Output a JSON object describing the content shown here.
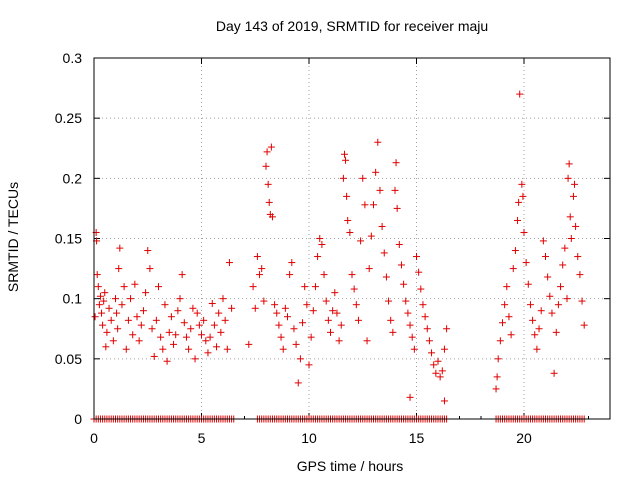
{
  "chart_data": {
    "type": "scatter",
    "title": "Day 143 of 2019, SRMTID for receiver maju",
    "xlabel": "GPS time / hours",
    "ylabel": "SRMTID / TECUs",
    "xlim": [
      0,
      24
    ],
    "ylim": [
      0,
      0.3
    ],
    "x_ticks": [
      0,
      5,
      10,
      15,
      20
    ],
    "x_tick_labels": [
      "0",
      "5",
      "10",
      "15",
      "20"
    ],
    "y_ticks": [
      0,
      0.05,
      0.1,
      0.15,
      0.2,
      0.25,
      0.3
    ],
    "y_tick_labels": [
      "0",
      "0.05",
      "0.1",
      "0.15",
      "0.2",
      "0.25",
      "0.3"
    ],
    "grid": true,
    "marker": "+",
    "color": "#e00000",
    "series": [
      {
        "name": "SRMTID",
        "points": [
          [
            0.05,
            0.085
          ],
          [
            0.1,
            0.155
          ],
          [
            0.12,
            0.148
          ],
          [
            0.15,
            0.12
          ],
          [
            0.2,
            0.11
          ],
          [
            0.25,
            0.095
          ],
          [
            0.3,
            0.102
          ],
          [
            0.35,
            0.088
          ],
          [
            0.4,
            0.078
          ],
          [
            0.45,
            0.098
          ],
          [
            0.5,
            0.105
          ],
          [
            0.55,
            0.06
          ],
          [
            0.6,
            0.072
          ],
          [
            0.7,
            0.092
          ],
          [
            0.8,
            0.082
          ],
          [
            0.9,
            0.065
          ],
          [
            1.0,
            0.1
          ],
          [
            1.05,
            0.088
          ],
          [
            1.1,
            0.075
          ],
          [
            1.15,
            0.125
          ],
          [
            1.2,
            0.142
          ],
          [
            1.3,
            0.095
          ],
          [
            1.4,
            0.11
          ],
          [
            1.5,
            0.058
          ],
          [
            1.6,
            0.082
          ],
          [
            1.7,
            0.1
          ],
          [
            1.8,
            0.07
          ],
          [
            1.9,
            0.112
          ],
          [
            2.0,
            0.085
          ],
          [
            2.1,
            0.065
          ],
          [
            2.2,
            0.078
          ],
          [
            2.3,
            0.09
          ],
          [
            2.4,
            0.105
          ],
          [
            2.5,
            0.14
          ],
          [
            2.6,
            0.125
          ],
          [
            2.7,
            0.075
          ],
          [
            2.8,
            0.052
          ],
          [
            2.9,
            0.082
          ],
          [
            3.0,
            0.11
          ],
          [
            3.1,
            0.068
          ],
          [
            3.2,
            0.058
          ],
          [
            3.3,
            0.095
          ],
          [
            3.4,
            0.048
          ],
          [
            3.5,
            0.072
          ],
          [
            3.6,
            0.085
          ],
          [
            3.7,
            0.062
          ],
          [
            3.8,
            0.07
          ],
          [
            3.9,
            0.09
          ],
          [
            4.0,
            0.1
          ],
          [
            4.1,
            0.12
          ],
          [
            4.2,
            0.08
          ],
          [
            4.3,
            0.068
          ],
          [
            4.4,
            0.058
          ],
          [
            4.5,
            0.075
          ],
          [
            4.6,
            0.092
          ],
          [
            4.7,
            0.05
          ],
          [
            4.8,
            0.088
          ],
          [
            4.9,
            0.078
          ],
          [
            5.0,
            0.07
          ],
          [
            5.1,
            0.082
          ],
          [
            5.2,
            0.065
          ],
          [
            5.3,
            0.055
          ],
          [
            5.4,
            0.068
          ],
          [
            5.5,
            0.096
          ],
          [
            5.6,
            0.078
          ],
          [
            5.7,
            0.06
          ],
          [
            5.8,
            0.088
          ],
          [
            5.9,
            0.072
          ],
          [
            6.0,
            0.1
          ],
          [
            6.1,
            0.082
          ],
          [
            6.2,
            0.058
          ],
          [
            6.3,
            0.13
          ],
          [
            6.4,
            0.092
          ],
          [
            7.2,
            0.062
          ],
          [
            7.4,
            0.11
          ],
          [
            7.5,
            0.092
          ],
          [
            7.6,
            0.135
          ],
          [
            7.7,
            0.12
          ],
          [
            7.8,
            0.125
          ],
          [
            7.9,
            0.098
          ],
          [
            8.0,
            0.21
          ],
          [
            8.05,
            0.222
          ],
          [
            8.1,
            0.195
          ],
          [
            8.15,
            0.18
          ],
          [
            8.2,
            0.17
          ],
          [
            8.25,
            0.226
          ],
          [
            8.3,
            0.168
          ],
          [
            8.4,
            0.095
          ],
          [
            8.5,
            0.088
          ],
          [
            8.6,
            0.078
          ],
          [
            8.7,
            0.068
          ],
          [
            8.8,
            0.058
          ],
          [
            8.9,
            0.092
          ],
          [
            9.0,
            0.085
          ],
          [
            9.1,
            0.12
          ],
          [
            9.2,
            0.13
          ],
          [
            9.3,
            0.075
          ],
          [
            9.4,
            0.062
          ],
          [
            9.5,
            0.03
          ],
          [
            9.6,
            0.05
          ],
          [
            9.7,
            0.08
          ],
          [
            9.8,
            0.11
          ],
          [
            9.9,
            0.095
          ],
          [
            10.0,
            0.045
          ],
          [
            10.1,
            0.068
          ],
          [
            10.2,
            0.09
          ],
          [
            10.3,
            0.11
          ],
          [
            10.4,
            0.135
          ],
          [
            10.5,
            0.15
          ],
          [
            10.6,
            0.145
          ],
          [
            10.7,
            0.12
          ],
          [
            10.8,
            0.098
          ],
          [
            10.9,
            0.082
          ],
          [
            11.0,
            0.072
          ],
          [
            11.1,
            0.09
          ],
          [
            11.2,
            0.105
          ],
          [
            11.3,
            0.088
          ],
          [
            11.4,
            0.065
          ],
          [
            11.5,
            0.078
          ],
          [
            11.6,
            0.2
          ],
          [
            11.65,
            0.22
          ],
          [
            11.7,
            0.215
          ],
          [
            11.75,
            0.185
          ],
          [
            11.8,
            0.165
          ],
          [
            11.9,
            0.155
          ],
          [
            12.0,
            0.12
          ],
          [
            12.1,
            0.108
          ],
          [
            12.2,
            0.095
          ],
          [
            12.3,
            0.082
          ],
          [
            12.4,
            0.148
          ],
          [
            12.5,
            0.2
          ],
          [
            12.6,
            0.178
          ],
          [
            12.7,
            0.065
          ],
          [
            12.8,
            0.125
          ],
          [
            12.9,
            0.152
          ],
          [
            13.0,
            0.178
          ],
          [
            13.1,
            0.205
          ],
          [
            13.2,
            0.23
          ],
          [
            13.3,
            0.19
          ],
          [
            13.4,
            0.16
          ],
          [
            13.5,
            0.138
          ],
          [
            13.6,
            0.118
          ],
          [
            13.7,
            0.098
          ],
          [
            13.8,
            0.082
          ],
          [
            13.9,
            0.072
          ],
          [
            14.0,
            0.19
          ],
          [
            14.05,
            0.213
          ],
          [
            14.1,
            0.175
          ],
          [
            14.2,
            0.145
          ],
          [
            14.3,
            0.128
          ],
          [
            14.4,
            0.112
          ],
          [
            14.5,
            0.098
          ],
          [
            14.6,
            0.088
          ],
          [
            14.7,
            0.078
          ],
          [
            14.8,
            0.068
          ],
          [
            14.9,
            0.058
          ],
          [
            15.0,
            0.135
          ],
          [
            15.1,
            0.122
          ],
          [
            15.2,
            0.108
          ],
          [
            15.3,
            0.095
          ],
          [
            15.4,
            0.085
          ],
          [
            15.5,
            0.075
          ],
          [
            15.6,
            0.065
          ],
          [
            15.7,
            0.055
          ],
          [
            15.8,
            0.045
          ],
          [
            15.9,
            0.038
          ],
          [
            16.0,
            0.048
          ],
          [
            16.1,
            0.035
          ],
          [
            16.2,
            0.04
          ],
          [
            16.3,
            0.058
          ],
          [
            16.4,
            0.075
          ],
          [
            14.7,
            0.018
          ],
          [
            16.3,
            0.015
          ],
          [
            18.7,
            0.025
          ],
          [
            18.75,
            0.035
          ],
          [
            18.8,
            0.05
          ],
          [
            18.9,
            0.065
          ],
          [
            19.0,
            0.08
          ],
          [
            19.1,
            0.095
          ],
          [
            19.2,
            0.11
          ],
          [
            19.3,
            0.085
          ],
          [
            19.4,
            0.07
          ],
          [
            19.5,
            0.125
          ],
          [
            19.6,
            0.14
          ],
          [
            19.7,
            0.165
          ],
          [
            19.75,
            0.18
          ],
          [
            19.8,
            0.27
          ],
          [
            19.9,
            0.195
          ],
          [
            19.95,
            0.185
          ],
          [
            20.0,
            0.155
          ],
          [
            20.1,
            0.13
          ],
          [
            20.2,
            0.112
          ],
          [
            20.3,
            0.095
          ],
          [
            20.4,
            0.082
          ],
          [
            20.5,
            0.07
          ],
          [
            20.6,
            0.058
          ],
          [
            20.7,
            0.075
          ],
          [
            20.8,
            0.09
          ],
          [
            20.9,
            0.148
          ],
          [
            21.0,
            0.135
          ],
          [
            21.1,
            0.118
          ],
          [
            21.2,
            0.102
          ],
          [
            21.3,
            0.088
          ],
          [
            21.4,
            0.038
          ],
          [
            21.5,
            0.072
          ],
          [
            21.6,
            0.095
          ],
          [
            21.7,
            0.11
          ],
          [
            21.8,
            0.128
          ],
          [
            21.9,
            0.142
          ],
          [
            22.0,
            0.1
          ],
          [
            22.05,
            0.2
          ],
          [
            22.1,
            0.212
          ],
          [
            22.15,
            0.168
          ],
          [
            22.2,
            0.15
          ],
          [
            22.3,
            0.185
          ],
          [
            22.35,
            0.195
          ],
          [
            22.4,
            0.16
          ],
          [
            22.5,
            0.135
          ],
          [
            22.6,
            0.12
          ],
          [
            22.7,
            0.098
          ],
          [
            22.8,
            0.078
          ]
        ]
      }
    ],
    "zero_points_x": [
      0.0,
      0.1,
      0.2,
      0.3,
      0.4,
      0.5,
      0.6,
      0.7,
      0.8,
      0.9,
      1.0,
      1.1,
      1.2,
      1.3,
      1.4,
      1.5,
      1.6,
      1.7,
      1.8,
      1.9,
      2.0,
      2.1,
      2.2,
      2.3,
      2.4,
      2.5,
      2.6,
      2.7,
      2.8,
      2.9,
      3.0,
      3.1,
      3.2,
      3.3,
      3.4,
      3.5,
      3.6,
      3.7,
      3.8,
      3.9,
      4.0,
      4.1,
      4.2,
      4.3,
      4.4,
      4.5,
      4.6,
      4.7,
      4.8,
      4.9,
      5.0,
      5.1,
      5.2,
      5.3,
      5.4,
      5.5,
      5.6,
      5.7,
      5.8,
      5.9,
      6.0,
      6.1,
      6.2,
      6.3,
      6.4,
      6.5,
      7.6,
      7.7,
      7.8,
      7.9,
      8.0,
      8.1,
      8.2,
      8.3,
      8.4,
      8.5,
      8.6,
      8.7,
      8.8,
      8.9,
      9.0,
      9.1,
      9.2,
      9.3,
      9.4,
      9.5,
      9.6,
      9.7,
      9.8,
      9.9,
      10.0,
      10.1,
      10.2,
      10.3,
      10.4,
      10.5,
      10.6,
      10.7,
      10.8,
      10.9,
      11.0,
      11.1,
      11.2,
      11.3,
      11.4,
      11.5,
      11.6,
      11.7,
      11.8,
      11.9,
      12.0,
      12.1,
      12.2,
      12.3,
      12.4,
      12.5,
      12.6,
      12.7,
      12.8,
      12.9,
      13.0,
      13.1,
      13.2,
      13.3,
      13.4,
      13.5,
      13.6,
      13.7,
      13.8,
      13.9,
      14.0,
      14.1,
      14.2,
      14.3,
      14.4,
      14.5,
      14.6,
      14.7,
      14.8,
      14.9,
      15.0,
      15.1,
      15.2,
      15.3,
      15.4,
      15.5,
      15.6,
      15.7,
      15.8,
      15.9,
      16.0,
      16.1,
      16.2,
      16.3,
      16.4,
      18.7,
      18.8,
      18.9,
      19.0,
      19.1,
      19.2,
      19.3,
      19.4,
      19.5,
      19.6,
      19.7,
      19.8,
      19.9,
      20.0,
      20.1,
      20.2,
      20.3,
      20.4,
      20.5,
      20.6,
      20.7,
      20.8,
      20.9,
      21.0,
      21.1,
      21.2,
      21.3,
      21.4,
      21.5,
      21.6,
      21.7,
      21.8,
      21.9,
      22.0,
      22.1,
      22.2,
      22.3,
      22.4,
      22.5,
      22.6,
      22.7,
      22.8
    ]
  }
}
